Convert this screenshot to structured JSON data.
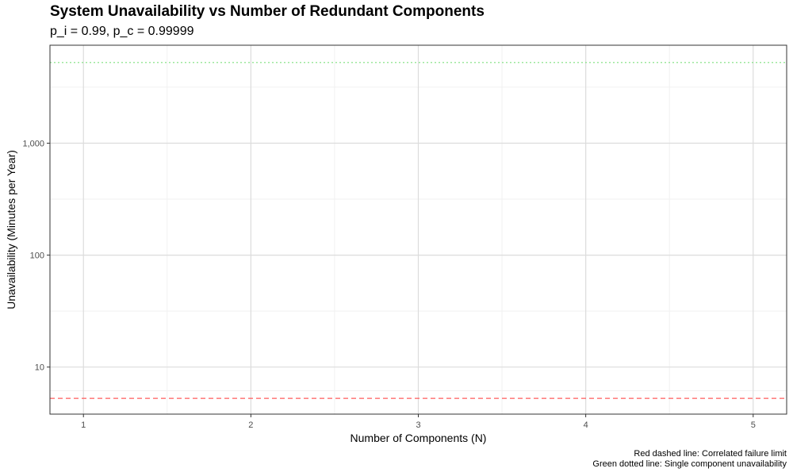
{
  "chart_data": {
    "type": "line",
    "title": "System Unavailability vs Number of Redundant Components",
    "subtitle": "p_i = 0.99, p_c = 0.99999",
    "xlabel": "Number of Components (N)",
    "ylabel": "Unavailability (Minutes per Year)",
    "x_scale": "linear",
    "y_scale": "log10",
    "xlim": [
      0.8,
      5.2
    ],
    "ylim": [
      3.8,
      7500
    ],
    "x_ticks": [
      1,
      2,
      3,
      4,
      5
    ],
    "x_tick_labels": [
      "1",
      "2",
      "3",
      "4",
      "5"
    ],
    "y_ticks": [
      10,
      100,
      1000
    ],
    "y_tick_labels": [
      "10",
      "100",
      "1,000"
    ],
    "grid": true,
    "reference_lines": [
      {
        "value": 5.256,
        "style": "dashed",
        "color": "#ff5c5c",
        "meaning": "Correlated failure limit"
      },
      {
        "value": 5256,
        "style": "dotted",
        "color": "#7ee07e",
        "meaning": "Single component unavailability"
      }
    ],
    "captions": [
      "Red dashed line: Correlated failure limit",
      "Green dotted line: Single component unavailability"
    ]
  },
  "colors": {
    "panel_border": "#333333",
    "grid_major": "#dcdcdc",
    "grid_minor": "#f1f1f1",
    "correlated_limit": "#ff5c5c",
    "single_component": "#7ee07e"
  }
}
